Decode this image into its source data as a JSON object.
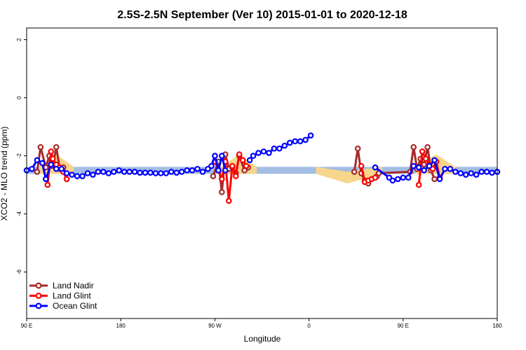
{
  "chart_data": {
    "type": "line",
    "title": "2.5S-2.5N September (Ver 10)   2015-01-01 to 2020-12-18",
    "xlabel": "Longitude",
    "ylabel": "XCO2 - MLO trend (ppm)",
    "xlim": [
      -90,
      180
    ],
    "ylim": [
      -7.6,
      2.4
    ],
    "x_ticks": [
      {
        "value": -90,
        "label": "90 E"
      },
      {
        "value": -36,
        "label": "180"
      },
      {
        "value": 18,
        "label": "90 W"
      },
      {
        "value": 72,
        "label": "0"
      },
      {
        "value": 126,
        "label": "90 E"
      },
      {
        "value": 180,
        "label": "180"
      }
    ],
    "y_ticks": [
      {
        "value": 2,
        "label": "2"
      },
      {
        "value": 0,
        "label": "0"
      },
      {
        "value": -2,
        "label": "-2"
      },
      {
        "value": -4,
        "label": "-4"
      },
      {
        "value": -6,
        "label": "-6"
      }
    ],
    "grid": false,
    "legend_position": "bottom-left",
    "bands": [
      {
        "color": "#a3bde3",
        "from": -90,
        "to": 180,
        "y_low": -2.62,
        "y_high": -2.38
      },
      {
        "color": "#f7d58a",
        "x": [
          -83,
          -73,
          -63
        ],
        "y_top": [
          -2.38,
          -1.95,
          -2.38
        ],
        "y_bottom": [
          -2.62,
          -2.62,
          -2.62
        ]
      },
      {
        "color": "#f7d58a",
        "x": [
          22,
          32,
          42
        ],
        "y_top": [
          -2.38,
          -1.95,
          -2.38
        ],
        "y_bottom": [
          -2.62,
          -2.62,
          -2.62
        ]
      },
      {
        "color": "#f7d58a",
        "x": [
          76,
          94,
          114
        ],
        "y_top": [
          -2.38,
          -2.55,
          -2.38
        ],
        "y_bottom": [
          -2.62,
          -2.95,
          -2.62
        ]
      },
      {
        "color": "#f7d58a",
        "x": [
          133,
          145,
          156
        ],
        "y_top": [
          -2.38,
          -1.95,
          -2.38
        ],
        "y_bottom": [
          -2.62,
          -2.62,
          -2.62
        ]
      }
    ],
    "series": [
      {
        "name": "Land Nadir",
        "color": "#a52a2a",
        "segments": [
          {
            "x": [
              -84,
              -82,
              -79,
              -77,
              -75,
              -73,
              -71,
              -69,
              -67
            ],
            "y": [
              -2.55,
              -1.7,
              -2.4,
              -2.0,
              -2.35,
              -1.7,
              -2.45,
              -2.4,
              -2.8
            ]
          },
          {
            "x": [
              17,
              20,
              22,
              24,
              26,
              28,
              30,
              32,
              35,
              37
            ],
            "y": [
              -2.7,
              -2.2,
              -3.25,
              -1.95,
              -2.45,
              -2.4,
              -2.6,
              -2.0,
              -2.5,
              -2.4
            ]
          },
          {
            "x": [
              98,
              100,
              102,
              104,
              106
            ],
            "y": [
              -2.55,
              -1.75,
              -2.6,
              -2.85,
              -2.95
            ]
          },
          {
            "x": [
              111,
              112,
              130,
              132,
              134,
              136,
              138,
              140,
              142,
              144
            ],
            "y": [
              -2.7,
              -2.6,
              -2.55,
              -1.7,
              -2.45,
              -2.1,
              -2.3,
              -1.7,
              -2.5,
              -2.8
            ]
          }
        ]
      },
      {
        "name": "Land Glint",
        "color": "#ff0000",
        "segments": [
          {
            "x": [
              -78,
              -76,
              -75,
              -73,
              -71,
              -69,
              -67
            ],
            "y": [
              -3.0,
              -1.85,
              -2.1,
              -2.3,
              -2.4,
              -2.55,
              -2.8
            ]
          },
          {
            "x": [
              18,
              20,
              22,
              24,
              26,
              28,
              30,
              32,
              34,
              36
            ],
            "y": [
              -2.2,
              -2.5,
              -2.8,
              -2.2,
              -3.55,
              -2.35,
              -2.7,
              -1.95,
              -2.15,
              -2.35
            ]
          },
          {
            "x": [
              102,
              104,
              106,
              108,
              110
            ],
            "y": [
              -2.35,
              -2.9,
              -2.85,
              -2.8,
              -2.75
            ]
          },
          {
            "x": [
              135,
              137,
              139,
              141,
              143,
              145,
              147
            ],
            "y": [
              -3.0,
              -1.85,
              -2.1,
              -2.3,
              -2.45,
              -2.2,
              -2.75
            ]
          }
        ]
      },
      {
        "name": "Ocean Glint",
        "color": "#0000ff",
        "segments": [
          {
            "x": [
              -90,
              -87,
              -84,
              -81,
              -79,
              -76,
              -73,
              -70,
              -67,
              -64,
              -61,
              -58,
              -55,
              -52,
              -49,
              -46,
              -43,
              -40,
              -37,
              -34,
              -31,
              -28,
              -25,
              -22,
              -19,
              -16,
              -13,
              -10,
              -7,
              -4,
              -1,
              2,
              5,
              8,
              11,
              14,
              16,
              18,
              20,
              22,
              24
            ],
            "y": [
              -2.5,
              -2.45,
              -2.15,
              -2.25,
              -2.8,
              -2.3,
              -2.45,
              -2.45,
              -2.6,
              -2.65,
              -2.7,
              -2.7,
              -2.6,
              -2.65,
              -2.55,
              -2.55,
              -2.6,
              -2.55,
              -2.5,
              -2.55,
              -2.55,
              -2.55,
              -2.58,
              -2.58,
              -2.58,
              -2.6,
              -2.6,
              -2.6,
              -2.55,
              -2.58,
              -2.55,
              -2.5,
              -2.5,
              -2.45,
              -2.55,
              -2.45,
              -2.35,
              -2.0,
              -2.5,
              -2.0,
              -2.5
            ]
          },
          {
            "x": [
              38,
              40,
              43,
              46,
              49,
              52,
              55,
              58,
              61,
              64,
              67,
              70,
              73
            ],
            "y": [
              -2.15,
              -2.0,
              -1.9,
              -1.85,
              -1.9,
              -1.75,
              -1.75,
              -1.65,
              -1.55,
              -1.5,
              -1.5,
              -1.45,
              -1.3
            ]
          },
          {
            "x": [
              110,
              118,
              120,
              123,
              126,
              129,
              132,
              135,
              138,
              141,
              144,
              147,
              150,
              153,
              156,
              159,
              162,
              165,
              168,
              171,
              174,
              177,
              180
            ],
            "y": [
              -2.4,
              -2.75,
              -2.85,
              -2.8,
              -2.75,
              -2.75,
              -2.35,
              -2.4,
              -2.5,
              -2.35,
              -2.15,
              -2.8,
              -2.45,
              -2.45,
              -2.55,
              -2.6,
              -2.65,
              -2.6,
              -2.65,
              -2.55,
              -2.55,
              -2.58,
              -2.55
            ]
          }
        ]
      }
    ]
  }
}
